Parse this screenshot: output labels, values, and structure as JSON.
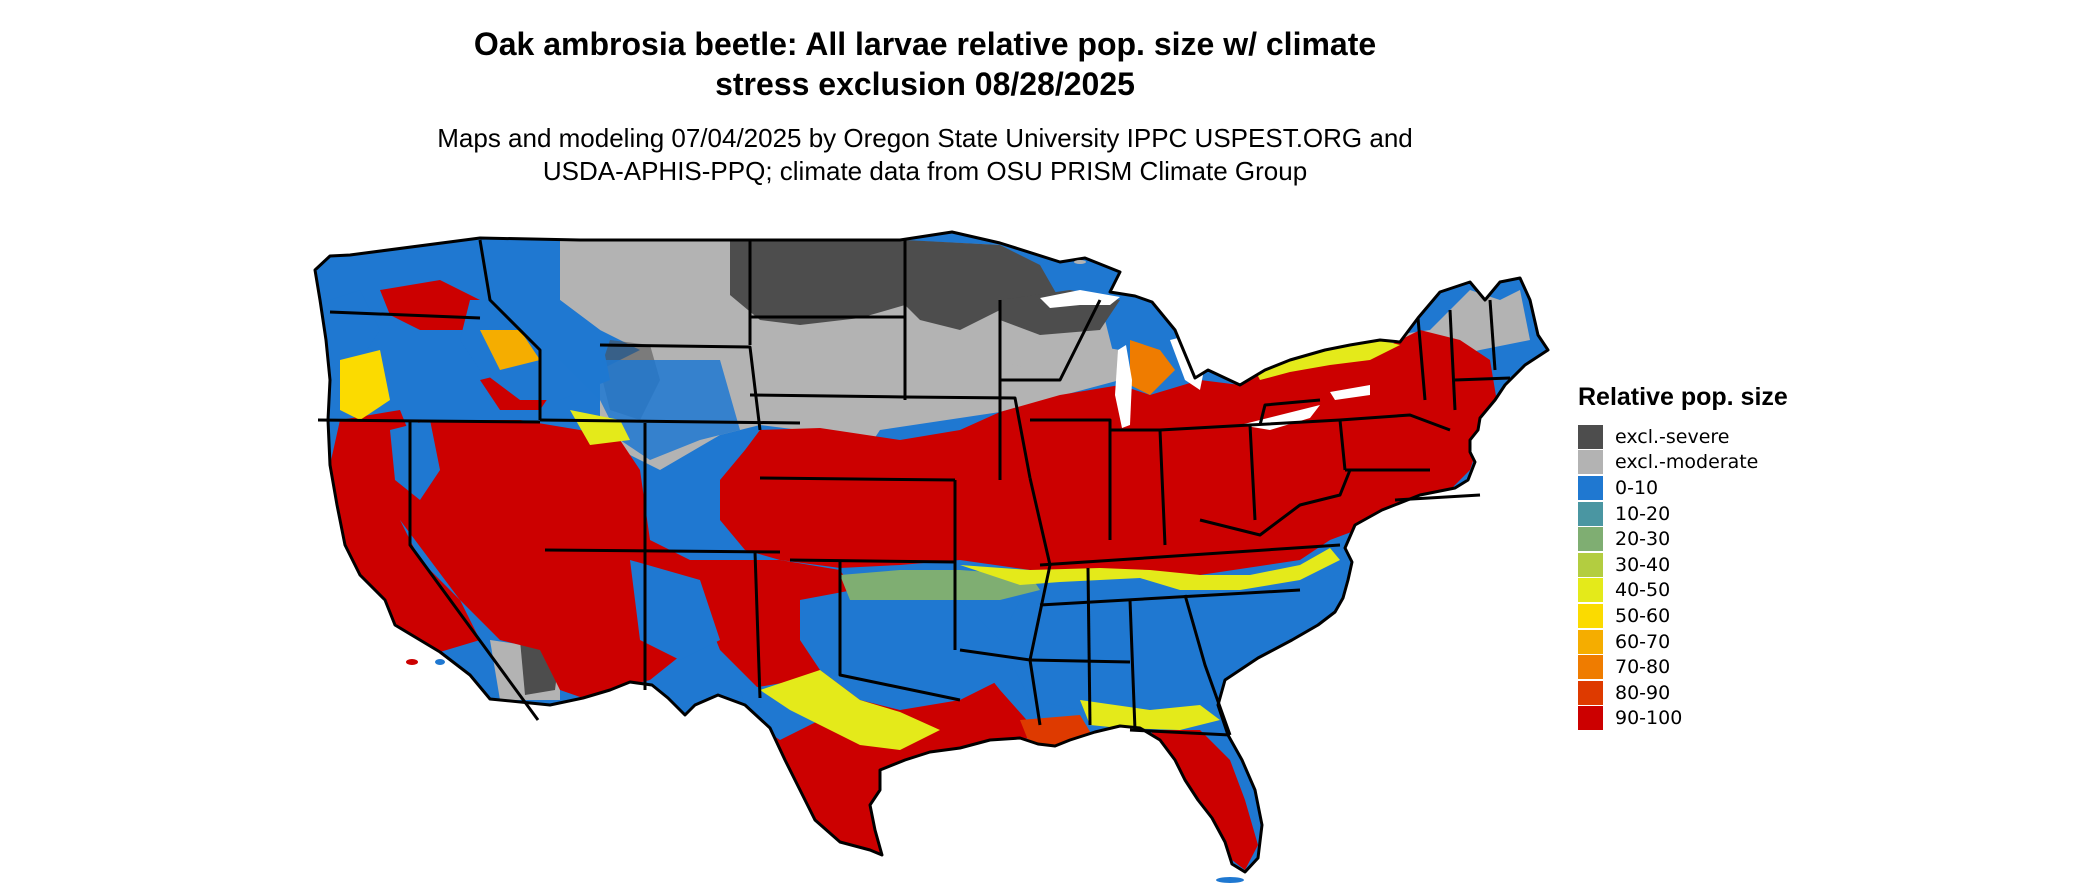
{
  "title_lines": [
    "Oak ambrosia beetle: All larvae relative pop. size w/ climate",
    "stress exclusion 08/28/2025"
  ],
  "subtitle_lines": [
    "Maps and modeling 07/04/2025 by Oregon State University IPPC USPEST.ORG and",
    "USDA-APHIS-PPQ; climate data from OSU PRISM Climate Group"
  ],
  "legend": {
    "title": "Relative pop. size",
    "items": [
      {
        "label": "excl.-severe",
        "color": "#4d4d4d"
      },
      {
        "label": "excl.-moderate",
        "color": "#b3b3b3"
      },
      {
        "label": "0-10",
        "color": "#1f78d1"
      },
      {
        "label": "10-20",
        "color": "#4a96a2"
      },
      {
        "label": "20-30",
        "color": "#7fae72"
      },
      {
        "label": "30-40",
        "color": "#b3cd40"
      },
      {
        "label": "40-50",
        "color": "#e4ea1a"
      },
      {
        "label": "50-60",
        "color": "#fbdb00"
      },
      {
        "label": "60-70",
        "color": "#f5ad00"
      },
      {
        "label": "70-80",
        "color": "#ef7c00"
      },
      {
        "label": "80-90",
        "color": "#de3a00"
      },
      {
        "label": "90-100",
        "color": "#cc0000"
      }
    ]
  }
}
